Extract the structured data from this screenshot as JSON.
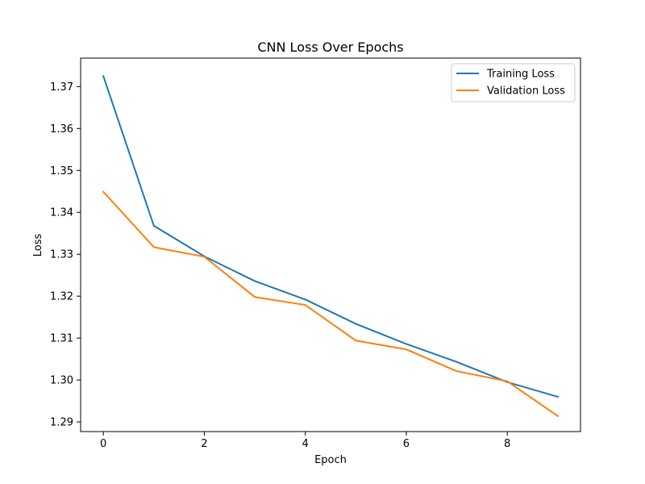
{
  "chart_data": {
    "type": "line",
    "title": "CNN Loss Over Epochs",
    "xlabel": "Epoch",
    "ylabel": "Loss",
    "x": [
      0,
      1,
      2,
      3,
      4,
      5,
      6,
      7,
      8,
      9
    ],
    "xlim": [
      -0.45,
      9.45
    ],
    "ylim": [
      1.2877,
      1.3768
    ],
    "xticks": [
      0,
      2,
      4,
      6,
      8
    ],
    "xtick_labels": [
      "0",
      "2",
      "4",
      "6",
      "8"
    ],
    "yticks": [
      1.29,
      1.3,
      1.31,
      1.32,
      1.33,
      1.34,
      1.35,
      1.36,
      1.37
    ],
    "ytick_labels": [
      "1.29",
      "1.30",
      "1.31",
      "1.32",
      "1.33",
      "1.34",
      "1.35",
      "1.36",
      "1.37"
    ],
    "grid": false,
    "legend_position": "top-right",
    "series": [
      {
        "name": "Training Loss",
        "color": "#1f77b4",
        "values": [
          1.3725,
          1.3368,
          1.3295,
          1.3236,
          1.3192,
          1.3134,
          1.3086,
          1.3043,
          1.2995,
          1.296
        ]
      },
      {
        "name": "Validation Loss",
        "color": "#ff7f0e",
        "values": [
          1.3449,
          1.3317,
          1.3294,
          1.3198,
          1.3179,
          1.3094,
          1.3073,
          1.3021,
          1.2997,
          1.2914
        ]
      }
    ]
  }
}
